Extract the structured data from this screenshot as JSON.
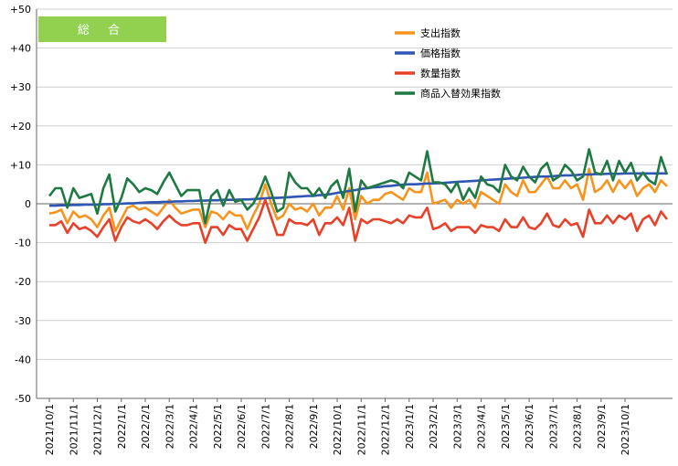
{
  "chart_data": {
    "type": "line",
    "badge": {
      "label": "総 合",
      "color": "#92D050"
    },
    "ylim": [
      -50,
      50
    ],
    "yticks": [
      {
        "value": 50,
        "label": "+50"
      },
      {
        "value": 40,
        "label": "+40"
      },
      {
        "value": 30,
        "label": "+30"
      },
      {
        "value": 20,
        "label": "+20"
      },
      {
        "value": 10,
        "label": "+10"
      },
      {
        "value": 0,
        "label": "0"
      },
      {
        "value": -10,
        "label": "-10"
      },
      {
        "value": -20,
        "label": "-20"
      },
      {
        "value": -30,
        "label": "-30"
      },
      {
        "value": -40,
        "label": "-40"
      },
      {
        "value": -50,
        "label": "-50"
      }
    ],
    "xticks": [
      {
        "index": 0,
        "label": "2021/10/1"
      },
      {
        "index": 4,
        "label": "2021/11/1"
      },
      {
        "index": 8,
        "label": "2021/12/1"
      },
      {
        "index": 12,
        "label": "2022/1/1"
      },
      {
        "index": 16,
        "label": "2022/2/1"
      },
      {
        "index": 20,
        "label": "2022/3/1"
      },
      {
        "index": 24,
        "label": "2022/4/1"
      },
      {
        "index": 28,
        "label": "2022/5/1"
      },
      {
        "index": 32,
        "label": "2022/6/1"
      },
      {
        "index": 36,
        "label": "2022/7/1"
      },
      {
        "index": 40,
        "label": "2022/8/1"
      },
      {
        "index": 44,
        "label": "2022/9/1"
      },
      {
        "index": 48,
        "label": "2022/10/1"
      },
      {
        "index": 52,
        "label": "2022/11/1"
      },
      {
        "index": 56,
        "label": "2022/12/1"
      },
      {
        "index": 60,
        "label": "2023/1/1"
      },
      {
        "index": 64,
        "label": "2023/2/1"
      },
      {
        "index": 68,
        "label": "2023/3/1"
      },
      {
        "index": 72,
        "label": "2023/4/1"
      },
      {
        "index": 76,
        "label": "2023/5/1"
      },
      {
        "index": 80,
        "label": "2023/6/1"
      },
      {
        "index": 84,
        "label": "2023/7/1"
      },
      {
        "index": 88,
        "label": "2023/8/1"
      },
      {
        "index": 92,
        "label": "2023/9/1"
      },
      {
        "index": 96,
        "label": "2023/10/1"
      }
    ],
    "grid": true,
    "legend_position": "top-right",
    "series": [
      {
        "name": "支出指数",
        "color": "#F7941D",
        "values": [
          -2.5,
          -2.2,
          -1.5,
          -5,
          -2,
          -3.5,
          -3,
          -4,
          -6,
          -3,
          -1,
          -7,
          -4,
          -1,
          -0.5,
          -1.5,
          -1,
          -2,
          -3,
          -1,
          1,
          -1,
          -2.5,
          -2,
          -1.5,
          -1.5,
          -6,
          -2,
          -2.5,
          -4,
          -2,
          -3,
          -3,
          -6.5,
          -3,
          0,
          5,
          0,
          -4,
          -3,
          0,
          -1.5,
          -1,
          -2,
          0,
          -3,
          -1,
          -1,
          2,
          -1.5,
          4,
          -4,
          2,
          0,
          1,
          1,
          2.5,
          3,
          2,
          1,
          4,
          3,
          3,
          8,
          0,
          0.5,
          1,
          -1,
          1,
          0,
          1,
          -1,
          3,
          2,
          1,
          0,
          5,
          3,
          2,
          6,
          3,
          3,
          5,
          7,
          4,
          4,
          6,
          4,
          5,
          1,
          9,
          3,
          4,
          6,
          3,
          6,
          4,
          6,
          2,
          4,
          5,
          3,
          6,
          4.5
        ]
      },
      {
        "name": "価格指数",
        "color": "#2F56B6",
        "values": [
          -0.5,
          -0.5,
          -0.4,
          -0.4,
          -0.3,
          -0.3,
          -0.2,
          -0.2,
          -0.2,
          -0.1,
          -0.1,
          0,
          0,
          0.1,
          0.1,
          0.2,
          0.3,
          0.4,
          0.4,
          0.5,
          0.5,
          0.6,
          0.6,
          0.7,
          0.7,
          0.8,
          0.8,
          0.9,
          0.9,
          1,
          1,
          1,
          1.1,
          1.1,
          1.2,
          1.3,
          1.4,
          1.5,
          1.5,
          1.6,
          1.7,
          1.8,
          1.9,
          2,
          2,
          2.2,
          2.3,
          2.5,
          2.8,
          3,
          3.3,
          3.5,
          3.8,
          4,
          4.2,
          4.3,
          4.5,
          4.6,
          4.8,
          4.9,
          5,
          5,
          5.1,
          5.2,
          5.2,
          5.3,
          5.4,
          5.5,
          5.6,
          5.7,
          5.8,
          5.9,
          6,
          6.1,
          6.2,
          6.3,
          6.4,
          6.5,
          6.6,
          6.7,
          6.8,
          6.9,
          7,
          7,
          7.1,
          7.2,
          7.3,
          7.3,
          7.4,
          7.5,
          7.5,
          7.6,
          7.6,
          7.7,
          7.7,
          7.7,
          7.8,
          7.8,
          7.8,
          7.8,
          7.8,
          7.8,
          7.8,
          7.8
        ]
      },
      {
        "name": "数量指数",
        "color": "#E8412A",
        "values": [
          -5.5,
          -5.5,
          -4.5,
          -7.5,
          -5,
          -6.5,
          -6,
          -7,
          -8.5,
          -6,
          -4,
          -9.5,
          -6,
          -3.5,
          -4.5,
          -5,
          -4,
          -5,
          -6.5,
          -4.5,
          -3,
          -4.5,
          -5.5,
          -5.5,
          -5,
          -5,
          -10,
          -6,
          -6,
          -8,
          -5.5,
          -6.5,
          -6.5,
          -9.5,
          -6.5,
          -3.5,
          1,
          -3.5,
          -8,
          -8,
          -4,
          -5,
          -5,
          -5.5,
          -4,
          -8,
          -5,
          -5,
          -3.5,
          -5.5,
          -1,
          -9.5,
          -4,
          -5,
          -4,
          -4,
          -4.5,
          -5,
          -4,
          -5,
          -3,
          -3.5,
          -3.5,
          -1,
          -6.5,
          -6,
          -5,
          -7,
          -6,
          -6,
          -6,
          -7.5,
          -5.5,
          -6,
          -6,
          -7,
          -4,
          -6,
          -6,
          -3.5,
          -6,
          -6.5,
          -5,
          -2.5,
          -5.5,
          -6,
          -4,
          -5.5,
          -5,
          -8.5,
          -1.5,
          -5,
          -5,
          -3,
          -5,
          -3,
          -4,
          -2.5,
          -7,
          -4,
          -3,
          -5.5,
          -2,
          -4
        ]
      },
      {
        "name": "商品入替効果指数",
        "color": "#1E7A42",
        "values": [
          2,
          4,
          4,
          -1,
          4,
          1.5,
          2,
          2.5,
          -2.5,
          4,
          7.5,
          -2,
          1.5,
          6.5,
          5,
          3,
          4,
          3.5,
          2.5,
          5.5,
          8,
          5,
          2,
          3.5,
          3.5,
          3.5,
          -5,
          2,
          3.5,
          -0.5,
          3.5,
          0.5,
          1,
          -1.5,
          0,
          3,
          7,
          3,
          -2,
          -1,
          8,
          5.5,
          4,
          4,
          2,
          4,
          1.5,
          4.5,
          6,
          1.5,
          9,
          -2,
          6,
          4,
          4.5,
          5,
          5.5,
          6,
          5.5,
          4,
          8,
          7,
          6,
          13.5,
          5.5,
          5.5,
          5,
          3,
          5.5,
          1,
          4,
          1.5,
          7,
          5,
          4.5,
          3,
          10,
          7,
          6,
          9.5,
          7,
          5.5,
          9,
          10.5,
          6,
          7,
          10,
          8.5,
          6,
          7,
          14,
          8,
          7.5,
          11,
          6,
          11,
          8,
          10.5,
          6,
          8,
          6,
          5,
          12,
          7.5
        ]
      }
    ]
  }
}
